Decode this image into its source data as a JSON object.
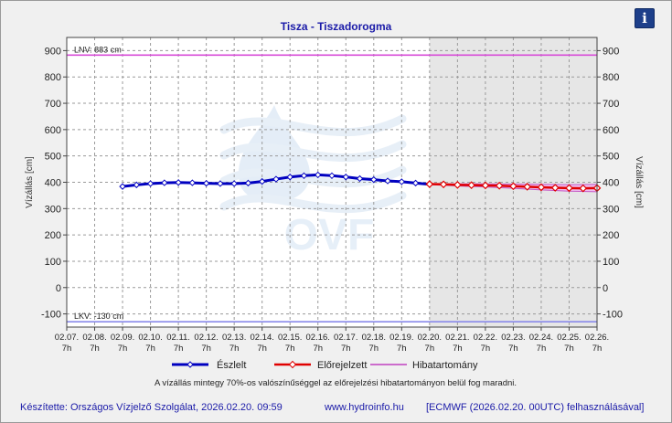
{
  "chart_data": {
    "type": "line",
    "title": "Tisza - Tiszadorogma",
    "ylabel": "Vízállás [cm]",
    "ylabel_right": "Vízállás [cm]",
    "ylim": [
      -150,
      950
    ],
    "y_ticks": [
      -100,
      0,
      100,
      200,
      300,
      400,
      500,
      600,
      700,
      800,
      900
    ],
    "x_start": "02.07. 7h",
    "x_end": "02.26. 7h",
    "x_tick_labels": [
      {
        "date": "02.07.",
        "hour": "7h"
      },
      {
        "date": "02.08.",
        "hour": "7h"
      },
      {
        "date": "02.09.",
        "hour": "7h"
      },
      {
        "date": "02.10.",
        "hour": "7h"
      },
      {
        "date": "02.11.",
        "hour": "7h"
      },
      {
        "date": "02.12.",
        "hour": "7h"
      },
      {
        "date": "02.13.",
        "hour": "7h"
      },
      {
        "date": "02.14.",
        "hour": "7h"
      },
      {
        "date": "02.15.",
        "hour": "7h"
      },
      {
        "date": "02.16.",
        "hour": "7h"
      },
      {
        "date": "02.17.",
        "hour": "7h"
      },
      {
        "date": "02.18.",
        "hour": "7h"
      },
      {
        "date": "02.19.",
        "hour": "7h"
      },
      {
        "date": "02.20.",
        "hour": "7h"
      },
      {
        "date": "02.21.",
        "hour": "7h"
      },
      {
        "date": "02.22.",
        "hour": "7h"
      },
      {
        "date": "02.23.",
        "hour": "7h"
      },
      {
        "date": "02.24.",
        "hour": "7h"
      },
      {
        "date": "02.25.",
        "hour": "7h"
      },
      {
        "date": "02.26.",
        "hour": "7h"
      }
    ],
    "forecast_shade_start": "02.20. 7h",
    "reference_lines": [
      {
        "label": "LNV: 883 cm",
        "value": 883,
        "color": "#d84bd8"
      },
      {
        "label": "LKV: -130 cm",
        "value": -130,
        "color": "#8a8aea"
      }
    ],
    "series": [
      {
        "name": "Észlelt",
        "color": "#0000c0",
        "points": [
          [
            "02.09. 7h",
            384
          ],
          [
            "02.09. 19h",
            390
          ],
          [
            "02.10. 7h",
            395
          ],
          [
            "02.10. 19h",
            398
          ],
          [
            "02.11. 7h",
            399
          ],
          [
            "02.11. 19h",
            398
          ],
          [
            "02.12. 7h",
            396
          ],
          [
            "02.12. 19h",
            395
          ],
          [
            "02.13. 7h",
            395
          ],
          [
            "02.13. 19h",
            397
          ],
          [
            "02.14. 7h",
            403
          ],
          [
            "02.14. 19h",
            412
          ],
          [
            "02.15. 7h",
            420
          ],
          [
            "02.15. 19h",
            425
          ],
          [
            "02.16. 7h",
            428
          ],
          [
            "02.16. 19h",
            425
          ],
          [
            "02.17. 7h",
            420
          ],
          [
            "02.17. 19h",
            414
          ],
          [
            "02.18. 7h",
            410
          ],
          [
            "02.18. 19h",
            405
          ],
          [
            "02.19. 7h",
            402
          ],
          [
            "02.19. 19h",
            397
          ],
          [
            "02.20. 7h",
            392
          ]
        ]
      },
      {
        "name": "Előrejelzett",
        "color": "#e00000",
        "points": [
          [
            "02.20. 7h",
            393
          ],
          [
            "02.20. 19h",
            392
          ],
          [
            "02.21. 7h",
            390
          ],
          [
            "02.21. 19h",
            389
          ],
          [
            "02.22. 7h",
            388
          ],
          [
            "02.22. 19h",
            387
          ],
          [
            "02.23. 7h",
            385
          ],
          [
            "02.23. 19h",
            383
          ],
          [
            "02.24. 7h",
            381
          ],
          [
            "02.24. 19h",
            379
          ],
          [
            "02.25. 7h",
            378
          ],
          [
            "02.25. 19h",
            377
          ],
          [
            "02.26. 7h",
            378
          ]
        ]
      },
      {
        "name": "Hibatartomány",
        "color": "#c040c0",
        "upper": [
          [
            "02.20. 7h",
            395
          ],
          [
            "02.21. 7h",
            394
          ],
          [
            "02.22. 7h",
            394
          ],
          [
            "02.23. 7h",
            393
          ],
          [
            "02.24. 7h",
            392
          ],
          [
            "02.25. 7h",
            391
          ],
          [
            "02.26. 7h",
            392
          ]
        ],
        "lower": [
          [
            "02.20. 7h",
            391
          ],
          [
            "02.21. 7h",
            386
          ],
          [
            "02.22. 7h",
            382
          ],
          [
            "02.23. 7h",
            377
          ],
          [
            "02.24. 7h",
            371
          ],
          [
            "02.25. 7h",
            366
          ],
          [
            "02.26. 7h",
            364
          ]
        ]
      }
    ],
    "legend_position": "bottom",
    "note": "A vízállás mintegy 70%-os valószínűséggel az előrejelzési hibatartományon belül fog maradni.",
    "watermark": "OVF"
  },
  "footer": {
    "author": "Készítette: Országos Vízjelző Szolgálat, 2026.02.20. 09:59",
    "website": "www.hydroinfo.hu",
    "source": "[ECMWF (2026.02.20. 00UTC) felhasználásával]"
  },
  "info_icon": "info-icon",
  "info_glyph": "i"
}
